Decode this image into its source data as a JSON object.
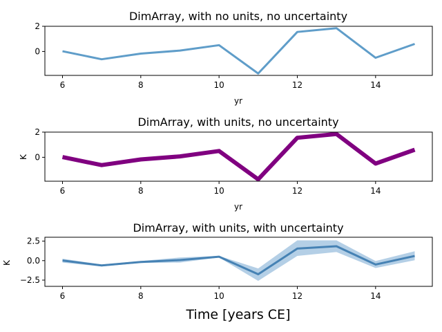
{
  "chart_data": [
    {
      "type": "line",
      "title": "DimArray, with no units, no uncertainty",
      "xlabel": "yr",
      "ylabel": "",
      "x": [
        6,
        7,
        8,
        9,
        10,
        11,
        12,
        13,
        14,
        15
      ],
      "series": [
        {
          "values": [
            0.02,
            -0.62,
            -0.17,
            0.07,
            0.5,
            -1.75,
            1.55,
            1.85,
            -0.5,
            0.6
          ],
          "color": "#5f9dc9"
        }
      ],
      "xlim": [
        5.55,
        15.45
      ],
      "ylim": [
        -1.9,
        2.0
      ],
      "xticks": [
        6,
        8,
        10,
        12,
        14
      ],
      "yticks": [
        0,
        2
      ],
      "grid": false
    },
    {
      "type": "line",
      "title": "DimArray, with units, no uncertainty",
      "xlabel": "yr",
      "ylabel": "K",
      "x": [
        6,
        7,
        8,
        9,
        10,
        11,
        12,
        13,
        14,
        15
      ],
      "series": [
        {
          "values": [
            0.02,
            -0.62,
            -0.17,
            0.07,
            0.5,
            -1.75,
            1.55,
            1.85,
            -0.5,
            0.6
          ],
          "color": "#800080"
        }
      ],
      "xlim": [
        5.55,
        15.45
      ],
      "ylim": [
        -1.9,
        2.0
      ],
      "xticks": [
        6,
        8,
        10,
        12,
        14
      ],
      "yticks": [
        0,
        2
      ],
      "grid": false
    },
    {
      "type": "area",
      "title": "DimArray, with units, with uncertainty",
      "xlabel": "Time [years CE]",
      "ylabel": "K",
      "x": [
        6,
        7,
        8,
        9,
        10,
        11,
        12,
        13,
        14,
        15
      ],
      "series": [
        {
          "values": [
            0.02,
            -0.62,
            -0.17,
            0.07,
            0.5,
            -1.75,
            1.55,
            1.85,
            -0.5,
            0.6
          ],
          "color": "#4682b4"
        }
      ],
      "band": {
        "lower": [
          -0.25,
          -0.75,
          -0.3,
          -0.25,
          0.4,
          -2.6,
          0.6,
          1.1,
          -0.95,
          0.05
        ],
        "upper": [
          0.25,
          -0.5,
          -0.05,
          0.4,
          0.6,
          -1.0,
          2.6,
          2.6,
          -0.05,
          1.2
        ],
        "color": "#b4cfe6"
      },
      "xlim": [
        5.55,
        15.45
      ],
      "ylim": [
        -3.3,
        3.0
      ],
      "xticks": [
        6,
        8,
        10,
        12,
        14
      ],
      "yticks": [
        -2.5,
        0.0,
        2.5
      ],
      "ytick_labels": [
        "−2.5",
        "0.0",
        "2.5"
      ],
      "grid": false
    }
  ]
}
